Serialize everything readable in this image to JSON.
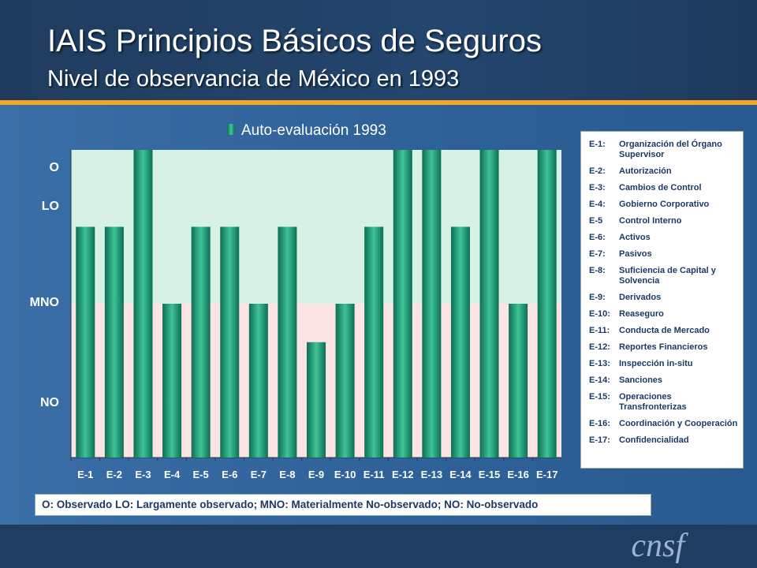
{
  "header": {
    "title": "IAIS Principios Básicos de Seguros",
    "subtitle": "Nivel de observancia de México en 1993"
  },
  "chart_data": {
    "type": "bar",
    "legend": "top",
    "series": [
      {
        "name": "Auto-evaluación 1993",
        "values": [
          3,
          3,
          4,
          2,
          3,
          3,
          2,
          3,
          1.5,
          2,
          3,
          4,
          4,
          3,
          4,
          2,
          4
        ]
      }
    ],
    "categories": [
      "E-1",
      "E-2",
      "E-3",
      "E-4",
      "E-5",
      "E-6",
      "E-7",
      "E-8",
      "E-9",
      "E-10",
      "E-11",
      "E-12",
      "E-13",
      "E-14",
      "E-15",
      "E-16",
      "E-17"
    ],
    "ylim": [
      0,
      4
    ],
    "ytick_labels": [
      {
        "label": "O",
        "value": 3.75
      },
      {
        "label": "LO",
        "value": 3.25
      },
      {
        "label": "MNO",
        "value": 2.0
      },
      {
        "label": "NO",
        "value": 0.7
      }
    ],
    "background_bands": [
      {
        "from": 0,
        "to": 2,
        "color": "#fce4e4"
      },
      {
        "from": 2,
        "to": 4,
        "color": "#d7f2e4"
      }
    ],
    "bar_color": "#1a9b77",
    "grid": false
  },
  "legend_box": {
    "items": [
      {
        "code": "E-1:",
        "name": "Organización del Órgano Supervisor"
      },
      {
        "code": "E-2:",
        "name": "Autorización"
      },
      {
        "code": "E-3:",
        "name": "Cambios de Control"
      },
      {
        "code": "E-4:",
        "name": "Gobierno Corporativo"
      },
      {
        "code": "E-5",
        "name": "Control Interno"
      },
      {
        "code": "E-6:",
        "name": "Activos"
      },
      {
        "code": "E-7:",
        "name": "Pasivos"
      },
      {
        "code": "E-8:",
        "name": "Suficiencia de Capital y Solvencia"
      },
      {
        "code": "E-9:",
        "name": "Derivados"
      },
      {
        "code": "E-10:",
        "name": "Reaseguro"
      },
      {
        "code": "E-11:",
        "name": "Conducta de Mercado"
      },
      {
        "code": "E-12:",
        "name": "Reportes Financieros"
      },
      {
        "code": "E-13:",
        "name": "Inspección in-situ"
      },
      {
        "code": "E-14:",
        "name": "Sanciones"
      },
      {
        "code": "E-15:",
        "name": "Operaciones Transfronterizas"
      },
      {
        "code": "E-16:",
        "name": "Coordinación y Cooperación"
      },
      {
        "code": "E-17:",
        "name": "Confidencialidad"
      }
    ]
  },
  "note": "O: Observado  LO: Largamente observado;  MNO: Materialmente No-observado;  NO: No-observado",
  "logo": "cnsf"
}
